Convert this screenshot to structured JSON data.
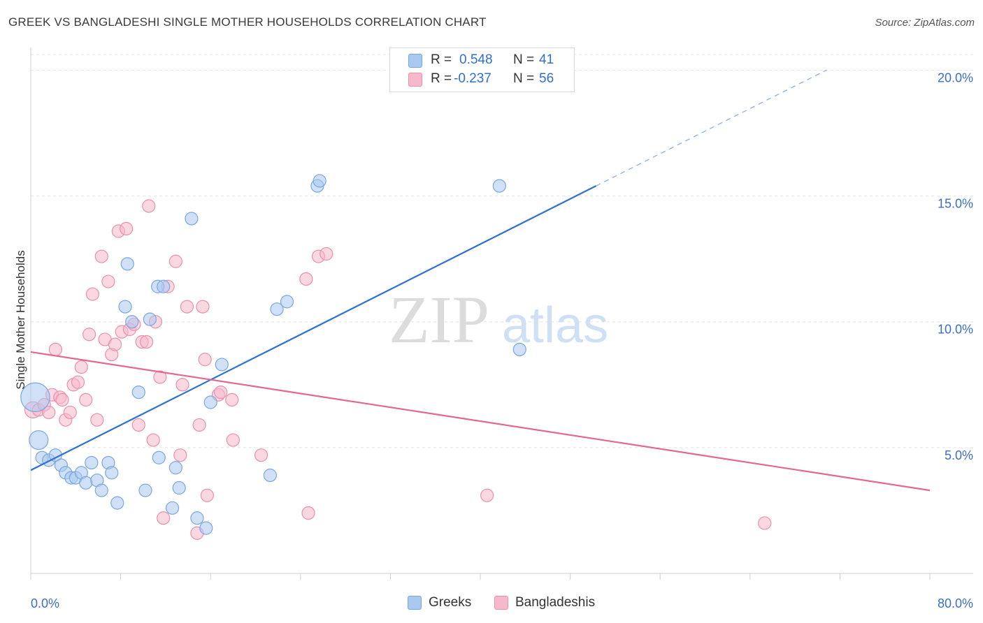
{
  "title": "GREEK VS BANGLADESHI SINGLE MOTHER HOUSEHOLDS CORRELATION CHART",
  "source": "Source: ZipAtlas.com",
  "watermark": {
    "zip": "ZIP",
    "atlas": "atlas"
  },
  "legend": {
    "r_label": "R =",
    "n_label": "N =",
    "greeks": {
      "r": "0.548",
      "n": "41",
      "color": "#a9c8f0",
      "border": "#7aa6e0"
    },
    "bangladeshis": {
      "r": "-0.237",
      "n": "56",
      "color": "#f6b8cb",
      "border": "#ec8fab"
    }
  },
  "bottom_legend": {
    "greeks": "Greeks",
    "bangladeshis": "Bangladeshis"
  },
  "chart_data": {
    "type": "scatter",
    "title": "GREEK VS BANGLADESHI SINGLE MOTHER HOUSEHOLDS CORRELATION CHART",
    "xlabel": "",
    "ylabel": "Single Mother Households",
    "xlim": [
      0,
      80
    ],
    "ylim": [
      0,
      20.9
    ],
    "x_tick_labels": [
      "0.0%",
      "80.0%"
    ],
    "y_ticks": [
      5,
      10,
      15,
      20
    ],
    "y_tick_labels": [
      "5.0%",
      "10.0%",
      "15.0%",
      "20.0%"
    ],
    "grid": "horizontal dashed",
    "legend_position": "top-center",
    "series": [
      {
        "name": "Greeks",
        "color": "#a9c8f0",
        "stroke": "#7aa6e0",
        "line_color": "#2f72d0",
        "trend": {
          "x0": 0,
          "y0": 4.1,
          "x1": 50.3,
          "y1": 15.4,
          "dash_to_x": 70.8,
          "dash_to_y": 20.0
        },
        "points": [
          [
            0.4,
            7.0,
            2.3
          ],
          [
            0.7,
            5.3,
            1.5
          ],
          [
            1.0,
            4.6,
            1
          ],
          [
            1.6,
            4.5,
            1
          ],
          [
            2.2,
            4.7,
            1
          ],
          [
            2.7,
            4.3,
            1
          ],
          [
            3.1,
            4.0,
            1
          ],
          [
            3.6,
            3.8,
            1
          ],
          [
            4.0,
            3.8,
            1
          ],
          [
            4.5,
            4.0,
            1
          ],
          [
            4.9,
            3.6,
            1
          ],
          [
            5.4,
            4.4,
            1
          ],
          [
            5.9,
            3.7,
            1
          ],
          [
            6.3,
            3.3,
            1
          ],
          [
            6.9,
            4.4,
            1
          ],
          [
            7.2,
            4.0,
            1
          ],
          [
            7.7,
            2.8,
            1
          ],
          [
            8.4,
            10.6,
            1
          ],
          [
            8.6,
            12.3,
            1
          ],
          [
            9.0,
            10.0,
            1
          ],
          [
            9.6,
            7.2,
            1
          ],
          [
            10.2,
            3.3,
            1
          ],
          [
            10.6,
            10.1,
            1
          ],
          [
            11.3,
            11.4,
            1
          ],
          [
            11.4,
            4.6,
            1
          ],
          [
            11.8,
            11.4,
            1
          ],
          [
            12.6,
            2.6,
            1
          ],
          [
            12.9,
            4.2,
            1
          ],
          [
            13.2,
            3.4,
            1
          ],
          [
            14.3,
            14.1,
            1
          ],
          [
            14.8,
            2.2,
            1
          ],
          [
            15.6,
            1.8,
            1
          ],
          [
            16.0,
            6.8,
            1
          ],
          [
            17.0,
            8.3,
            1
          ],
          [
            21.3,
            3.9,
            1
          ],
          [
            21.9,
            10.5,
            1
          ],
          [
            22.8,
            10.8,
            1
          ],
          [
            25.5,
            15.4,
            1
          ],
          [
            25.7,
            15.6,
            1
          ],
          [
            41.7,
            15.4,
            1
          ],
          [
            43.5,
            8.9,
            1
          ]
        ]
      },
      {
        "name": "Bangladeshis",
        "color": "#f6b8cb",
        "stroke": "#ec8fab",
        "line_color": "#e3688f",
        "trend": {
          "x0": 0,
          "y0": 8.8,
          "x1": 80,
          "y1": 3.3
        },
        "points": [
          [
            0.2,
            6.5,
            1.3
          ],
          [
            0.7,
            6.5,
            1
          ],
          [
            1.2,
            6.7,
            1
          ],
          [
            1.6,
            6.4,
            1
          ],
          [
            1.9,
            7.1,
            1
          ],
          [
            2.2,
            8.9,
            1
          ],
          [
            2.6,
            7.0,
            1
          ],
          [
            2.8,
            6.9,
            1
          ],
          [
            3.1,
            6.1,
            1
          ],
          [
            3.5,
            6.4,
            1
          ],
          [
            3.8,
            7.5,
            1
          ],
          [
            4.2,
            7.6,
            1
          ],
          [
            4.5,
            8.2,
            1
          ],
          [
            4.9,
            6.9,
            1
          ],
          [
            5.2,
            9.5,
            1
          ],
          [
            5.5,
            11.1,
            1
          ],
          [
            5.9,
            6.1,
            1
          ],
          [
            6.3,
            12.6,
            1
          ],
          [
            6.6,
            9.3,
            1
          ],
          [
            6.9,
            11.6,
            1
          ],
          [
            7.2,
            8.7,
            1
          ],
          [
            7.5,
            9.1,
            1
          ],
          [
            7.8,
            13.6,
            1
          ],
          [
            8.1,
            9.6,
            1
          ],
          [
            8.5,
            13.7,
            1
          ],
          [
            8.8,
            9.7,
            1
          ],
          [
            9.2,
            9.9,
            1
          ],
          [
            9.6,
            5.9,
            1
          ],
          [
            9.9,
            9.2,
            1
          ],
          [
            10.3,
            9.2,
            1
          ],
          [
            10.5,
            14.6,
            1
          ],
          [
            10.9,
            5.3,
            1
          ],
          [
            11.1,
            10.0,
            1
          ],
          [
            11.5,
            7.8,
            1
          ],
          [
            11.8,
            2.2,
            1
          ],
          [
            12.2,
            11.4,
            1
          ],
          [
            12.9,
            12.4,
            1
          ],
          [
            13.5,
            7.5,
            1
          ],
          [
            13.9,
            10.6,
            1
          ],
          [
            14.8,
            1.6,
            1
          ],
          [
            15.0,
            5.9,
            1
          ],
          [
            15.3,
            10.6,
            1
          ],
          [
            15.5,
            8.5,
            1
          ],
          [
            15.7,
            3.1,
            1
          ],
          [
            16.7,
            7.1,
            1
          ],
          [
            16.9,
            7.2,
            1
          ],
          [
            17.9,
            6.9,
            1
          ],
          [
            18.0,
            5.3,
            1
          ],
          [
            20.5,
            4.7,
            1
          ],
          [
            24.5,
            11.7,
            1
          ],
          [
            24.7,
            2.4,
            1
          ],
          [
            25.6,
            12.6,
            1
          ],
          [
            26.3,
            12.7,
            1
          ],
          [
            40.6,
            3.1,
            1
          ],
          [
            65.3,
            2.0,
            1
          ],
          [
            13.3,
            4.7,
            1
          ]
        ]
      }
    ]
  }
}
